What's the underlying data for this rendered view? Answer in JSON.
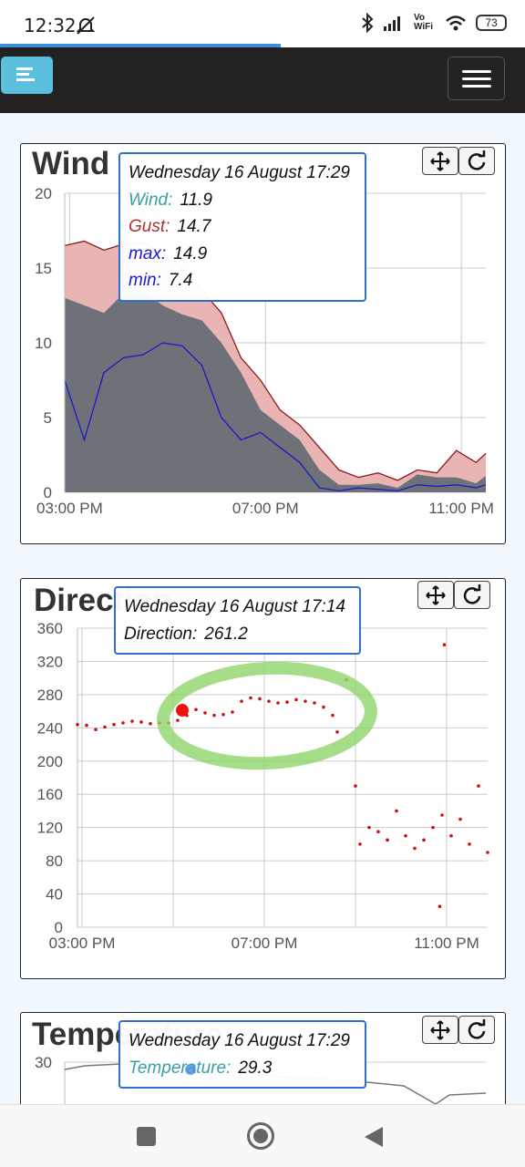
{
  "status_bar": {
    "time": "12:32",
    "signal_label": "Vo WiFi",
    "battery": "73"
  },
  "colors": {
    "wind": "#3aa0a8",
    "gust": "#b03030",
    "max": "#1a1ac8",
    "min": "#1a1ac8",
    "direction": "#cc1111",
    "temperature": "#3aa0a8",
    "accent": "#3b8fd9"
  },
  "navbar": {
    "brand_icon": "bars-icon",
    "menu_icon": "hamburger-icon"
  },
  "wind": {
    "title": "Wind",
    "tooltip": {
      "header": "Wednesday 16 August 17:29",
      "wind_label": "Wind:",
      "wind_value": "11.9",
      "gust_label": "Gust:",
      "gust_value": "14.7",
      "max_label": "max:",
      "max_value": "14.9",
      "min_label": "min:",
      "min_value": "7.4"
    },
    "pan_icon": "move-arrows-icon",
    "reset_icon": "reset-zoom-icon"
  },
  "direction": {
    "title": "Direction",
    "tooltip": {
      "header": "Wednesday 16 August 17:14",
      "direction_label": "Direction:",
      "direction_value": "261.2"
    }
  },
  "temperature": {
    "title": "Temperature",
    "tooltip": {
      "header": "Wednesday 16 August 17:29",
      "temp_label": "Temperature:",
      "temp_value": "29.3"
    }
  },
  "chart_data": [
    {
      "type": "area",
      "yticks": [
        "0",
        "5",
        "10",
        "15",
        "20"
      ],
      "xticks": [
        "03:00 PM",
        "07:00 PM",
        "11:00 PM"
      ],
      "ylim": [
        0,
        20
      ],
      "x_hours": [
        14.9,
        15.3,
        15.7,
        16.1,
        16.5,
        16.9,
        17.3,
        17.7,
        18.1,
        18.5,
        18.9,
        19.3,
        19.7,
        20.1,
        20.5,
        20.9,
        21.3,
        21.7,
        22.1,
        22.5,
        22.9,
        23.3,
        23.5
      ],
      "series": [
        {
          "name": "Gust",
          "values": [
            16.5,
            16.8,
            16.2,
            16.6,
            16.7,
            16.0,
            15.0,
            13.5,
            12.0,
            9.0,
            7.5,
            5.5,
            4.5,
            3.0,
            1.5,
            1.0,
            1.3,
            0.8,
            1.5,
            1.3,
            2.8,
            2.0,
            2.6
          ]
        },
        {
          "name": "Wind",
          "values": [
            13.0,
            12.5,
            12.0,
            13.3,
            13.5,
            12.5,
            11.9,
            11.5,
            10.0,
            8.0,
            5.5,
            4.5,
            3.5,
            1.5,
            0.5,
            0.5,
            0.6,
            0.3,
            1.2,
            1.0,
            1.0,
            0.6,
            1.1
          ]
        },
        {
          "name": "max",
          "values": [
            7.5,
            3.5,
            8.0,
            9.0,
            9.2,
            10.0,
            9.8,
            8.5,
            5.0,
            3.5,
            4.0,
            3.0,
            2.0,
            0.3,
            0.1,
            0.3,
            0.2,
            0.1,
            0.5,
            0.4,
            0.5,
            0.3,
            0.5
          ]
        }
      ]
    },
    {
      "type": "scatter",
      "yticks": [
        "0",
        "40",
        "80",
        "120",
        "160",
        "200",
        "240",
        "280",
        "320",
        "360"
      ],
      "xticks": [
        "03:00 PM",
        "07:00 PM",
        "11:00 PM"
      ],
      "ylim": [
        0,
        360
      ],
      "series": [
        {
          "name": "Direction",
          "points": [
            [
              14.9,
              244
            ],
            [
              15.1,
              243
            ],
            [
              15.3,
              238
            ],
            [
              15.5,
              241
            ],
            [
              15.7,
              244
            ],
            [
              15.9,
              246
            ],
            [
              16.1,
              248
            ],
            [
              16.3,
              247
            ],
            [
              16.5,
              245
            ],
            [
              16.7,
              246
            ],
            [
              16.9,
              246
            ],
            [
              17.1,
              249
            ],
            [
              17.3,
              255
            ],
            [
              17.5,
              262
            ],
            [
              17.7,
              258
            ],
            [
              17.9,
              255
            ],
            [
              18.1,
              256
            ],
            [
              18.3,
              259
            ],
            [
              18.5,
              272
            ],
            [
              18.7,
              276
            ],
            [
              18.9,
              275
            ],
            [
              19.1,
              272
            ],
            [
              19.3,
              270
            ],
            [
              19.5,
              271
            ],
            [
              19.7,
              274
            ],
            [
              19.9,
              272
            ],
            [
              20.1,
              270
            ],
            [
              20.3,
              265
            ],
            [
              20.5,
              255
            ],
            [
              20.6,
              235
            ],
            [
              20.8,
              298
            ],
            [
              21.0,
              170
            ],
            [
              21.1,
              100
            ],
            [
              21.3,
              120
            ],
            [
              21.5,
              115
            ],
            [
              21.7,
              105
            ],
            [
              21.9,
              140
            ],
            [
              22.1,
              110
            ],
            [
              22.3,
              95
            ],
            [
              22.5,
              105
            ],
            [
              22.7,
              120
            ],
            [
              22.9,
              135
            ],
            [
              23.1,
              110
            ],
            [
              22.95,
              340
            ],
            [
              22.85,
              25
            ],
            [
              23.3,
              130
            ],
            [
              23.5,
              100
            ],
            [
              23.7,
              170
            ],
            [
              23.9,
              90
            ]
          ]
        }
      ],
      "highlight": [
        17.2,
        261.2
      ]
    },
    {
      "type": "line",
      "yticks": [
        "30"
      ],
      "series": [
        {
          "name": "Temperature",
          "values": []
        }
      ]
    }
  ]
}
